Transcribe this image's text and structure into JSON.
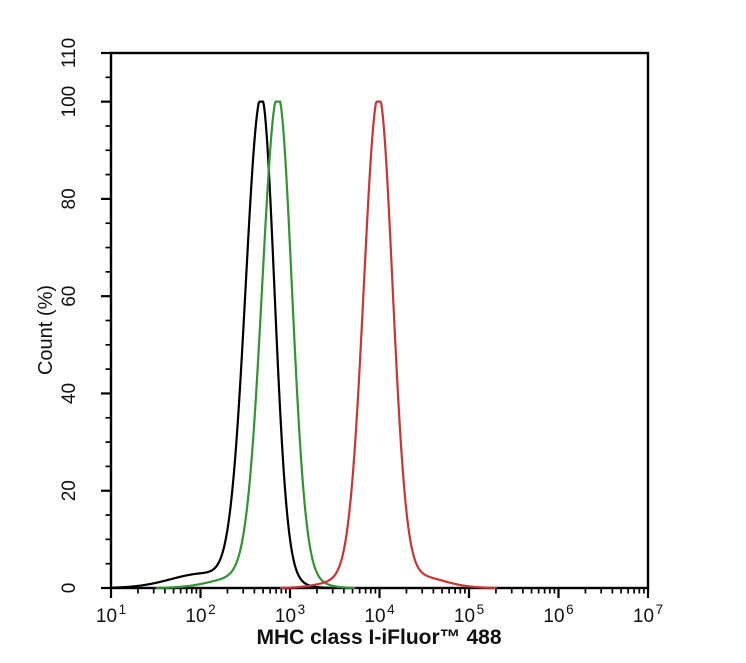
{
  "figure": {
    "background": "#ffffff",
    "frame_color": "#000000"
  },
  "chart_data": {
    "type": "line",
    "subtype": "flow-cytometry-histogram-overlay",
    "title": "",
    "xlabel": "MHC class I-iFluor™ 488",
    "ylabel": "Count (%)",
    "x_scale": "log10",
    "xlim_log10": [
      1,
      7
    ],
    "x_tick_base": "10",
    "x_tick_exponents": [
      "1",
      "2",
      "3",
      "4",
      "5",
      "6",
      "7"
    ],
    "x_minor_ticks": "log decades 2-9",
    "ylim": [
      0,
      110
    ],
    "y_major_ticks": [
      "0",
      "20",
      "40",
      "60",
      "80",
      "100",
      "110"
    ],
    "y_minor_step": 5,
    "grid": "off",
    "legend": "none",
    "series": [
      {
        "name": "black-histogram",
        "color": "#000000",
        "peak_count_pct": 100,
        "peak_x_value": 480,
        "peak_log10": 2.68,
        "sigma_left_log10": 0.175,
        "sigma_right_log10": 0.145,
        "tails": [
          {
            "amp_pct": 3.0,
            "mu_log10": 2.05,
            "sigma_log10": 0.38
          },
          {
            "amp_pct": 1.2,
            "mu_log10": 2.95,
            "sigma_log10": 0.18
          }
        ]
      },
      {
        "name": "green-histogram",
        "color": "#2e962e",
        "peak_count_pct": 100,
        "peak_x_value": 730,
        "peak_log10": 2.865,
        "sigma_left_log10": 0.175,
        "sigma_right_log10": 0.155,
        "tails": [
          {
            "amp_pct": 2.2,
            "mu_log10": 2.45,
            "sigma_log10": 0.32
          },
          {
            "amp_pct": 1.5,
            "mu_log10": 3.15,
            "sigma_log10": 0.2
          }
        ]
      },
      {
        "name": "red-histogram",
        "color": "#cc3333",
        "peak_count_pct": 100,
        "peak_x_value": 9800,
        "peak_log10": 3.99,
        "sigma_left_log10": 0.165,
        "sigma_right_log10": 0.155,
        "tails": [
          {
            "amp_pct": 1.5,
            "mu_log10": 3.6,
            "sigma_log10": 0.25
          },
          {
            "amp_pct": 2.5,
            "mu_log10": 4.4,
            "sigma_log10": 0.3
          }
        ]
      }
    ]
  }
}
